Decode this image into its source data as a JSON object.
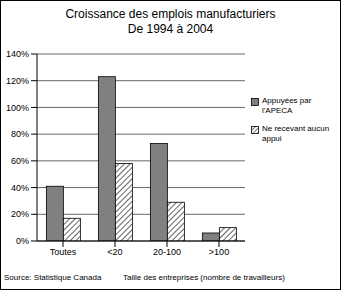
{
  "chart_data": {
    "type": "bar",
    "title": "Croissance des emplois manufacturiers",
    "subtitle": "De 1994 à 2004",
    "x_label": "Taille des entreprises (nombre de travailleurs)",
    "source": "Source: Statistique Canada",
    "categories": [
      "Toutes",
      "<20",
      "20-100",
      ">100"
    ],
    "series": [
      {
        "name": "Appuyées par l'APECA",
        "color": "#808080",
        "marker": "solid",
        "values": [
          41,
          123,
          73,
          6
        ]
      },
      {
        "name": "Ne recevant aucun appui",
        "color": "#000000",
        "marker": "hatch",
        "values": [
          17,
          58,
          29,
          10
        ]
      }
    ],
    "ylim": [
      0,
      140
    ],
    "yticks": [
      {
        "value": 0,
        "label": "0%"
      },
      {
        "value": 20,
        "label": "20%"
      },
      {
        "value": 40,
        "label": "40%"
      },
      {
        "value": 60,
        "label": "60%"
      },
      {
        "value": 80,
        "label": "80%"
      },
      {
        "value": 100,
        "label": "100%"
      },
      {
        "value": 120,
        "label": "120%"
      },
      {
        "value": 140,
        "label": "140%"
      }
    ],
    "grid": true,
    "legend": "right"
  }
}
